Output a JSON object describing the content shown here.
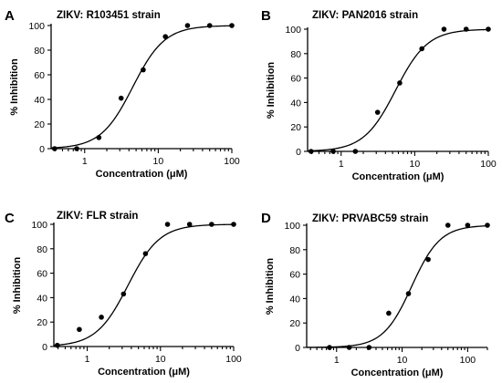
{
  "chart_data": [
    {
      "type": "scatter",
      "panel_label": "A",
      "title": "ZIKV: R103451 strain",
      "xlabel": "Concentration (μM)",
      "ylabel": "% Inhibition",
      "xscale": "log",
      "xlim": [
        0.35,
        100
      ],
      "ylim": [
        0,
        100
      ],
      "xticks": [
        1,
        10,
        100
      ],
      "yticks": [
        0,
        20,
        40,
        60,
        80,
        100
      ],
      "xtick_labels": [
        "1",
        "10",
        "100"
      ],
      "ytick_labels": [
        "0",
        "20",
        "40",
        "60",
        "80",
        "100"
      ],
      "grid": false,
      "series": [
        {
          "x": [
            0.39,
            0.78,
            1.56,
            3.13,
            6.25,
            12.5,
            25,
            50,
            100
          ],
          "y": [
            0,
            0,
            9,
            41,
            64,
            91,
            100,
            100,
            100
          ]
        }
      ],
      "fit": {
        "ic50": 4.5,
        "hill": 2.0,
        "bottom": 0,
        "top": 100
      }
    },
    {
      "type": "scatter",
      "panel_label": "B",
      "title": "ZIKV: PAN2016 strain",
      "xlabel": "Concentration (μM)",
      "ylabel": "% Inhibition",
      "xscale": "log",
      "xlim": [
        0.35,
        100
      ],
      "ylim": [
        0,
        100
      ],
      "xticks": [
        1,
        10,
        100
      ],
      "yticks": [
        0,
        20,
        40,
        60,
        80,
        100
      ],
      "xtick_labels": [
        "1",
        "10",
        "100"
      ],
      "ytick_labels": [
        "0",
        "20",
        "40",
        "60",
        "80",
        "100"
      ],
      "grid": false,
      "series": [
        {
          "x": [
            0.39,
            0.78,
            1.56,
            3.13,
            6.25,
            12.5,
            25,
            50,
            100
          ],
          "y": [
            0,
            0,
            0,
            32,
            56,
            84,
            100,
            100,
            100
          ]
        }
      ],
      "fit": {
        "ic50": 5.5,
        "hill": 2.0,
        "bottom": 0,
        "top": 100
      }
    },
    {
      "type": "scatter",
      "panel_label": "C",
      "title": "ZIKV: FLR strain",
      "xlabel": "Concentration (μM)",
      "ylabel": "% Inhibition",
      "xscale": "log",
      "xlim": [
        0.35,
        100
      ],
      "ylim": [
        0,
        100
      ],
      "xticks": [
        1,
        10,
        100
      ],
      "yticks": [
        0,
        20,
        40,
        60,
        80,
        100
      ],
      "xtick_labels": [
        "1",
        "10",
        "100"
      ],
      "ytick_labels": [
        "0",
        "20",
        "40",
        "60",
        "80",
        "100"
      ],
      "grid": false,
      "series": [
        {
          "x": [
            0.39,
            0.78,
            1.56,
            3.13,
            6.25,
            12.5,
            25,
            50,
            100
          ],
          "y": [
            1,
            14,
            24,
            43,
            76,
            100,
            100,
            100,
            100
          ]
        }
      ],
      "fit": {
        "ic50": 3.6,
        "hill": 2.0,
        "bottom": 0,
        "top": 100
      }
    },
    {
      "type": "scatter",
      "panel_label": "D",
      "title": "ZIKV: PRVABC59 strain",
      "xlabel": "Concentration (μM)",
      "ylabel": "% Inhibition",
      "xscale": "log",
      "xlim": [
        0.35,
        200
      ],
      "ylim": [
        0,
        100
      ],
      "xticks": [
        1,
        10,
        100
      ],
      "yticks": [
        0,
        20,
        40,
        60,
        80,
        100
      ],
      "xtick_labels": [
        "1",
        "10",
        "100"
      ],
      "ytick_labels": [
        "0",
        "20",
        "40",
        "60",
        "80",
        "100"
      ],
      "grid": false,
      "series": [
        {
          "x": [
            0.78,
            1.56,
            3.13,
            6.25,
            12.5,
            25,
            50,
            100,
            200
          ],
          "y": [
            0,
            0,
            0,
            28,
            44,
            72,
            100,
            100,
            100
          ]
        }
      ],
      "fit": {
        "ic50": 14.0,
        "hill": 2.0,
        "bottom": 0,
        "top": 100
      }
    }
  ]
}
